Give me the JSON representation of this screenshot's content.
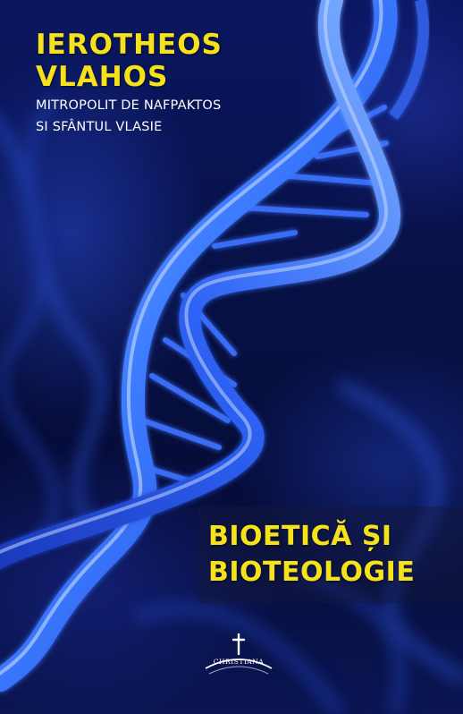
{
  "cover": {
    "author": {
      "first_line": "IEROTHEOS",
      "second_line": "VLAHOS",
      "subtitle_line_1": "MITROPOLIT DE NAFPAKTOS",
      "subtitle_line_2": "SI SFÂNTUL VLASIE"
    },
    "title": {
      "line_1": "BIOETICĂ ȘI",
      "line_2": "BIOTEOLOGIE"
    },
    "publisher": {
      "name": "CHRISTIANA",
      "icon": "cross-icon"
    },
    "colors": {
      "accent_yellow": "#f6e21a",
      "background_navy": "#060c38",
      "helix_blue": "#2f6bff",
      "text_white": "#ffffff"
    }
  }
}
